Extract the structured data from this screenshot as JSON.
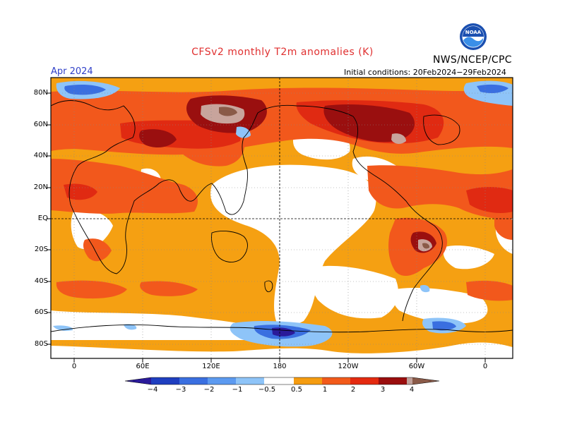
{
  "header": {
    "title": "CFSv2 monthly T2m anomalies (K)",
    "org": "NWS/NCEP/CPC",
    "logo_text": "NOAA",
    "period": "Apr 2024",
    "initial_conditions": "Initial conditions: 20Feb2024−29Feb2024"
  },
  "map": {
    "lat_labels": [
      "80N",
      "60N",
      "40N",
      "20N",
      "EQ",
      "20S",
      "40S",
      "60S",
      "80S"
    ],
    "lon_labels": [
      "0",
      "60E",
      "120E",
      "180",
      "120W",
      "60W",
      "0"
    ]
  },
  "colorbar": {
    "labels": [
      "−4",
      "−3",
      "−2",
      "−1",
      "−0.5",
      "0.5",
      "1",
      "2",
      "3",
      "4"
    ],
    "colors": [
      "#2a1a9a",
      "#1f3fc0",
      "#3a6fe0",
      "#5c9af0",
      "#8ec4f8",
      "#ffffff",
      "#f59c10",
      "#f25a1a",
      "#e42a10",
      "#9a0e0e",
      "#c0a09a",
      "#8a5a48"
    ]
  },
  "colors": {
    "white": "#ffffff",
    "light_orange": "#f5a012",
    "orange_red": "#f2581c",
    "red": "#e02a12",
    "dark_red": "#9a0f0f",
    "pink_brown": "#c8a49c",
    "brown": "#8a5a48",
    "light_blue": "#8ec4f8",
    "mid_blue": "#5c9af0",
    "blue": "#2f5fd0",
    "dark_blue": "#2a1a9a"
  }
}
